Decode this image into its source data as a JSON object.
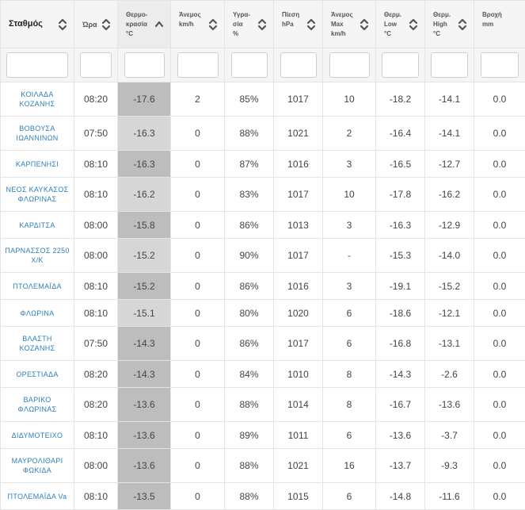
{
  "headers": [
    {
      "name": "station",
      "label": "Σταθμός"
    },
    {
      "name": "time",
      "label": "Ώρα"
    },
    {
      "name": "temperature",
      "label": "Θερμο-\nκρασία\n°C"
    },
    {
      "name": "wind",
      "label": "Άνεμος\nkm/h"
    },
    {
      "name": "humidity",
      "label": "Υγρα-\nσία\n%"
    },
    {
      "name": "pressure",
      "label": "Πίεση\nhPa"
    },
    {
      "name": "wind-max",
      "label": "Άνεμος\nMax\nkm/h"
    },
    {
      "name": "temp-low",
      "label": "Θερμ.\nLow\n°C"
    },
    {
      "name": "temp-high",
      "label": "Θερμ.\nHigh\n°C"
    },
    {
      "name": "rain",
      "label": "Βροχή\nmm"
    }
  ],
  "rows": [
    {
      "station": "ΚΟΙΛΑΔΑ\nΚΟΖΑΝΗΣ",
      "time": "08:20",
      "temp": "-17.6",
      "wind": "2",
      "humidity": "85%",
      "pressure": "1017",
      "wind_max": "10",
      "low": "-18.2",
      "high": "-14.1",
      "rain": "0.0"
    },
    {
      "station": "ΒΟΒΟΥΣΑ\nΙΩΑΝΝΙΝΩΝ",
      "time": "07:50",
      "temp": "-16.3",
      "wind": "0",
      "humidity": "88%",
      "pressure": "1021",
      "wind_max": "2",
      "low": "-16.4",
      "high": "-14.1",
      "rain": "0.0"
    },
    {
      "station": "ΚΑΡΠΕΝΗΣΙ",
      "time": "08:10",
      "temp": "-16.3",
      "wind": "0",
      "humidity": "87%",
      "pressure": "1016",
      "wind_max": "3",
      "low": "-16.5",
      "high": "-12.7",
      "rain": "0.0"
    },
    {
      "station": "ΝΕΟΣ ΚΑΥΚΑΣΟΣ\nΦΛΩΡΙΝΑΣ",
      "time": "08:10",
      "temp": "-16.2",
      "wind": "0",
      "humidity": "83%",
      "pressure": "1017",
      "wind_max": "10",
      "low": "-17.8",
      "high": "-16.2",
      "rain": "0.0"
    },
    {
      "station": "ΚΑΡΔΙΤΣΑ",
      "time": "08:00",
      "temp": "-15.8",
      "wind": "0",
      "humidity": "86%",
      "pressure": "1013",
      "wind_max": "3",
      "low": "-16.3",
      "high": "-12.9",
      "rain": "0.0"
    },
    {
      "station": "ΠΑΡΝΑΣΣΟΣ 2250\nΧ/Κ",
      "time": "08:00",
      "temp": "-15.2",
      "wind": "0",
      "humidity": "90%",
      "pressure": "1017",
      "wind_max": "-",
      "low": "-15.3",
      "high": "-14.0",
      "rain": "0.0"
    },
    {
      "station": "ΠΤΟΛΕΜΑΪΔΑ",
      "time": "08:10",
      "temp": "-15.2",
      "wind": "0",
      "humidity": "86%",
      "pressure": "1016",
      "wind_max": "3",
      "low": "-19.1",
      "high": "-15.2",
      "rain": "0.0"
    },
    {
      "station": "ΦΛΩΡΙΝΑ",
      "time": "08:10",
      "temp": "-15.1",
      "wind": "0",
      "humidity": "80%",
      "pressure": "1020",
      "wind_max": "6",
      "low": "-18.6",
      "high": "-12.1",
      "rain": "0.0"
    },
    {
      "station": "ΒΛΑΣΤΗ\nΚΟΖΑΝΗΣ",
      "time": "07:50",
      "temp": "-14.3",
      "wind": "0",
      "humidity": "86%",
      "pressure": "1017",
      "wind_max": "6",
      "low": "-16.8",
      "high": "-13.1",
      "rain": "0.0"
    },
    {
      "station": "ΟΡΕΣΤΙΑΔΑ",
      "time": "08:20",
      "temp": "-14.3",
      "wind": "0",
      "humidity": "84%",
      "pressure": "1010",
      "wind_max": "8",
      "low": "-14.3",
      "high": "-2.6",
      "rain": "0.0"
    },
    {
      "station": "ΒΑΡΙΚΟ\nΦΛΩΡΙΝΑΣ",
      "time": "08:20",
      "temp": "-13.6",
      "wind": "0",
      "humidity": "88%",
      "pressure": "1014",
      "wind_max": "8",
      "low": "-16.7",
      "high": "-13.6",
      "rain": "0.0"
    },
    {
      "station": "ΔΙΔΥΜΟΤΕΙΧΟ",
      "time": "08:10",
      "temp": "-13.6",
      "wind": "0",
      "humidity": "89%",
      "pressure": "1011",
      "wind_max": "6",
      "low": "-13.6",
      "high": "-3.7",
      "rain": "0.0"
    },
    {
      "station": "ΜΑΥΡΟΛΙΘΑΡΙ\nΦΩΚΙΔΑ",
      "time": "08:00",
      "temp": "-13.6",
      "wind": "0",
      "humidity": "88%",
      "pressure": "1021",
      "wind_max": "16",
      "low": "-13.7",
      "high": "-9.3",
      "rain": "0.0"
    },
    {
      "station": "ΠΤΟΛΕΜΑΪΔΑ Va",
      "time": "08:10",
      "temp": "-13.5",
      "wind": "0",
      "humidity": "88%",
      "pressure": "1015",
      "wind_max": "6",
      "low": "-14.8",
      "high": "-11.6",
      "rain": "0.0"
    }
  ]
}
